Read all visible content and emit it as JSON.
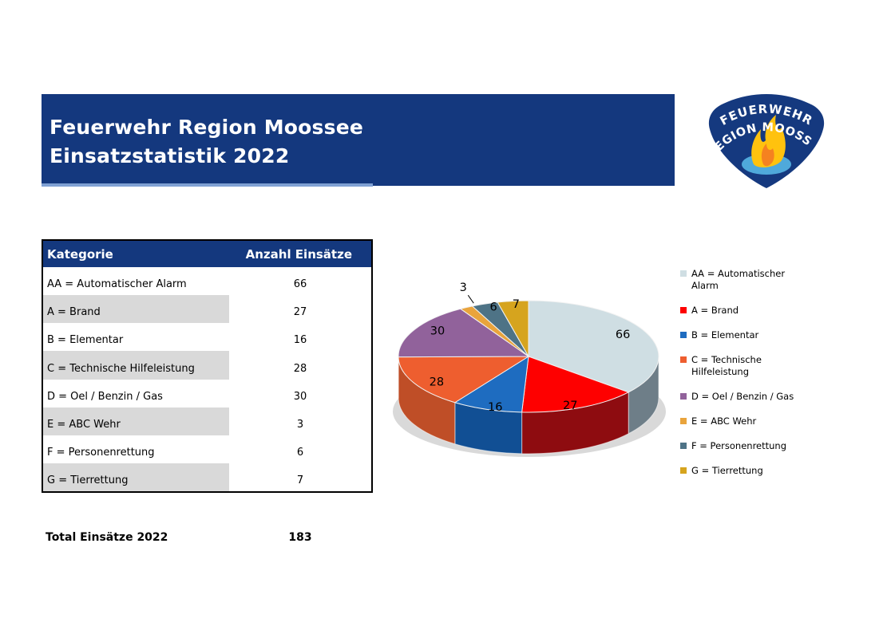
{
  "page": {
    "background": "#FFFFFF"
  },
  "header": {
    "title_line1": "Feuerwehr Region Moossee",
    "title_line2": "Einsatzstatistik 2022",
    "banner_color": "#14387E",
    "underline_color": "#7FA1D4"
  },
  "logo": {
    "text_top": "FEUERWEHR",
    "text_bottom": "REGION MOOSSEE",
    "badge_color": "#15397F",
    "flame_color": "#FFC20E",
    "flame_inner_color": "#F58220",
    "water_color": "#4FA9DB"
  },
  "table": {
    "header": {
      "category": "Kategorie",
      "count": "Anzahl Einsätze"
    },
    "header_bg": "#14387E",
    "zebra_color": "#D9D9D9",
    "rows": [
      {
        "label": "AA = Automatischer Alarm",
        "value": "66"
      },
      {
        "label": "A = Brand",
        "value": "27"
      },
      {
        "label": "B = Elementar",
        "value": "16"
      },
      {
        "label": "C = Technische Hilfeleistung",
        "value": "28"
      },
      {
        "label": "D = Oel / Benzin / Gas",
        "value": "30"
      },
      {
        "label": "E =  ABC Wehr",
        "value": "3"
      },
      {
        "label": "F = Personenrettung",
        "value": "6"
      },
      {
        "label": "G = Tierrettung",
        "value": "7"
      }
    ]
  },
  "total": {
    "label": "Total Einsätze 2022",
    "value": "183"
  },
  "chart_data": {
    "type": "pie",
    "style": "3d",
    "title": "",
    "categories": [
      "AA = Automatischer Alarm",
      "A = Brand",
      "B = Elementar",
      "C = Technische Hilfeleistung",
      "D = Oel / Benzin / Gas",
      "E =  ABC Wehr",
      "F = Personenrettung",
      "G = Tierrettung"
    ],
    "values": [
      66,
      27,
      16,
      28,
      30,
      3,
      6,
      7
    ],
    "total": 183,
    "colors": [
      "#CFDEE3",
      "#FE0000",
      "#1E6CC0",
      "#EE5E2F",
      "#91629B",
      "#E9A43C",
      "#4E7386",
      "#D6A41E"
    ],
    "side_colors": [
      "#6E7E88",
      "#8E0C10",
      "#114F94",
      "#BF4E27",
      "#6B4573",
      "#B87D23",
      "#3A5664",
      "#A07A10"
    ],
    "data_labels": "values",
    "start_angle_deg": 0,
    "direction": "clockwise",
    "legend_position": "right"
  }
}
